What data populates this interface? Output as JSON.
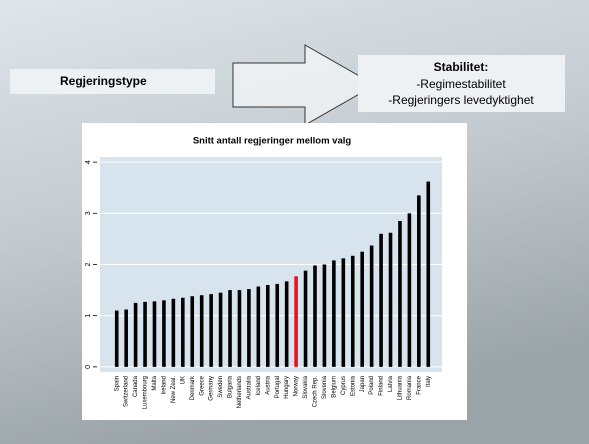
{
  "slide": {
    "left_box": "Regjeringstype",
    "right_box": {
      "heading": "Stabilitet:",
      "lines": [
        "-Regimestabilitet",
        "-Regjeringers levedyktighet"
      ]
    }
  },
  "chart_data": {
    "type": "bar",
    "title": "Snitt antall regjeringer mellom valg",
    "categories": [
      "Spain",
      "Switzerland",
      "Canada",
      "Luxembourg",
      "Malta",
      "Ireland",
      "New Zeal.",
      "UK",
      "Denmark",
      "Greece",
      "Germany",
      "Sweden",
      "Bulgaria",
      "Netherlands",
      "Australia",
      "Iceland",
      "Austria",
      "Portugal",
      "Hungary",
      "Norway",
      "Slovakia",
      "Czech Rep.",
      "Slovenia",
      "Belgium",
      "Cyprus",
      "Estonia",
      "Japan",
      "Poland",
      "Finland",
      "Latvia",
      "Lithuania",
      "Romania",
      "France",
      "Italy"
    ],
    "values": [
      1.1,
      1.12,
      1.25,
      1.27,
      1.28,
      1.3,
      1.33,
      1.35,
      1.38,
      1.4,
      1.42,
      1.45,
      1.5,
      1.5,
      1.52,
      1.57,
      1.6,
      1.62,
      1.67,
      1.77,
      1.88,
      1.98,
      2.0,
      2.08,
      2.12,
      2.17,
      2.25,
      2.37,
      2.6,
      2.62,
      2.85,
      3.0,
      3.35,
      3.62
    ],
    "colors": [
      "#000000",
      "#000000",
      "#000000",
      "#000000",
      "#000000",
      "#000000",
      "#000000",
      "#000000",
      "#000000",
      "#000000",
      "#000000",
      "#000000",
      "#000000",
      "#000000",
      "#000000",
      "#000000",
      "#000000",
      "#000000",
      "#000000",
      "#e8141c",
      "#000000",
      "#000000",
      "#000000",
      "#000000",
      "#000000",
      "#000000",
      "#000000",
      "#000000",
      "#000000",
      "#000000",
      "#000000",
      "#000000",
      "#000000",
      "#000000"
    ],
    "ylim": [
      -0.1,
      4.1
    ],
    "yticks": [
      0,
      1,
      2,
      3,
      4
    ],
    "grid": true
  }
}
